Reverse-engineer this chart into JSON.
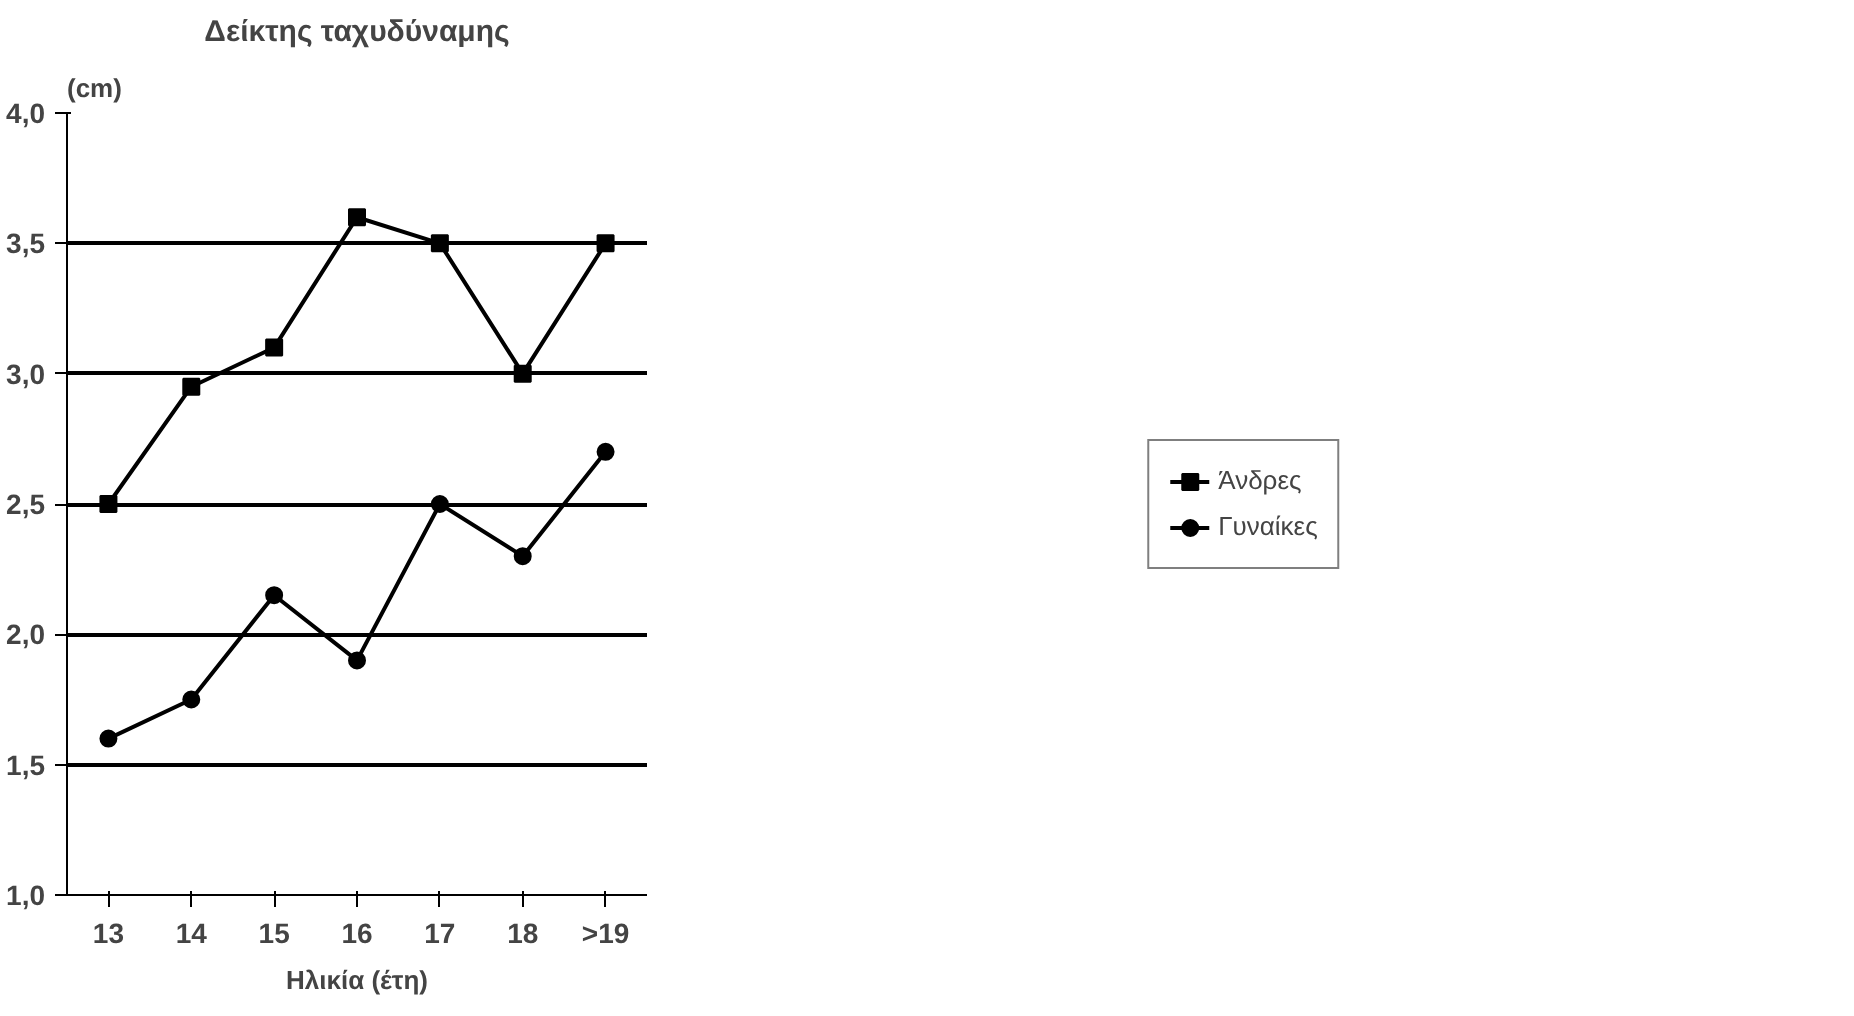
{
  "chart_data": {
    "type": "line",
    "title": "Δείκτης ταχυδύναμης",
    "ylabel": "(cm)",
    "xlabel": "Ηλικία (έτη)",
    "categories": [
      "13",
      "14",
      "15",
      "16",
      "17",
      "18",
      ">19"
    ],
    "series": [
      {
        "name": "Άνδρες",
        "color": "#000000",
        "marker": "square",
        "values": [
          2.5,
          2.95,
          3.1,
          3.6,
          3.5,
          3.0,
          3.5
        ]
      },
      {
        "name": "Γυναίκες",
        "color": "#000000",
        "marker": "circle",
        "values": [
          1.6,
          1.75,
          2.15,
          1.9,
          2.5,
          2.3,
          2.7
        ]
      }
    ],
    "ylim": [
      1.0,
      4.0
    ],
    "yticks": [
      {
        "value": 1.0,
        "label": "1,0"
      },
      {
        "value": 1.5,
        "label": "1,5"
      },
      {
        "value": 2.0,
        "label": "2,0"
      },
      {
        "value": 2.5,
        "label": "2,5"
      },
      {
        "value": 3.0,
        "label": "3,0"
      },
      {
        "value": 3.5,
        "label": "3,5"
      },
      {
        "value": 4.0,
        "label": "4,0"
      }
    ],
    "grid": "y",
    "legend": "right",
    "line_style": "solid"
  }
}
